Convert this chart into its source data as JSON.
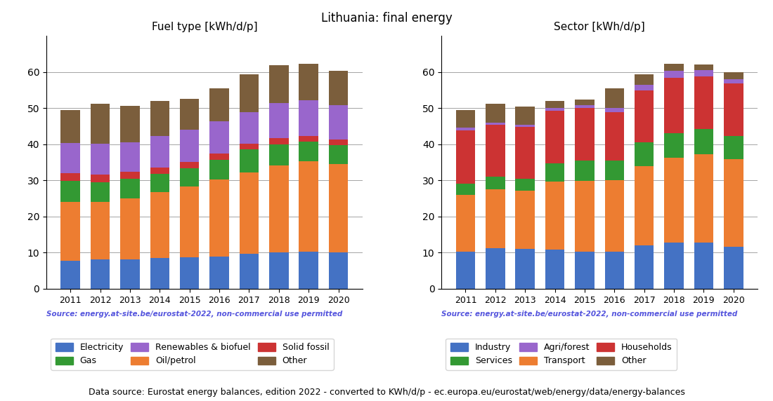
{
  "title": "Lithuania: final energy",
  "years": [
    2011,
    2012,
    2013,
    2014,
    2015,
    2016,
    2017,
    2018,
    2019,
    2020
  ],
  "fuel": {
    "title": "Fuel type [kWh/d/p]",
    "source": "Source: energy.at-site.be/eurostat-2022, non-commercial use permitted",
    "series_order": [
      "Electricity",
      "Oil/petrol",
      "Gas",
      "Solid fossil",
      "Renewables & biofuel",
      "Other"
    ],
    "series": {
      "Electricity": [
        7.8,
        8.1,
        8.2,
        8.5,
        8.7,
        9.0,
        9.7,
        10.1,
        10.3,
        10.0
      ],
      "Oil/petrol": [
        16.3,
        15.9,
        16.8,
        18.3,
        19.6,
        21.2,
        22.5,
        24.0,
        25.0,
        24.5
      ],
      "Gas": [
        5.7,
        5.5,
        5.4,
        5.0,
        5.0,
        5.5,
        6.5,
        5.8,
        5.5,
        5.3
      ],
      "Solid fossil": [
        2.2,
        2.2,
        2.0,
        1.8,
        1.9,
        1.7,
        1.5,
        1.8,
        1.5,
        1.5
      ],
      "Renewables & biofuel": [
        8.3,
        8.5,
        8.2,
        8.7,
        8.8,
        9.0,
        8.8,
        9.8,
        10.0,
        9.5
      ],
      "Other": [
        9.2,
        11.0,
        10.0,
        9.8,
        8.6,
        9.1,
        10.5,
        10.5,
        10.0,
        9.5
      ]
    },
    "colors": {
      "Electricity": "#4472c4",
      "Oil/petrol": "#ed7d31",
      "Gas": "#339933",
      "Solid fossil": "#cc3333",
      "Renewables & biofuel": "#9966cc",
      "Other": "#7b5e3c"
    },
    "legend_order": [
      "Electricity",
      "Gas",
      "Renewables & biofuel",
      "Oil/petrol",
      "Solid fossil",
      "Other"
    ]
  },
  "sector": {
    "title": "Sector [kWh/d/p]",
    "source": "Source: energy.at-site.be/eurostat-2022, non-commercial use permitted",
    "series_order": [
      "Industry",
      "Transport",
      "Services",
      "Households",
      "Agri/forest",
      "Other"
    ],
    "series": {
      "Industry": [
        10.3,
        11.2,
        11.0,
        10.8,
        10.3,
        10.2,
        12.0,
        12.7,
        12.8,
        11.7
      ],
      "Transport": [
        15.7,
        16.3,
        16.2,
        18.8,
        19.5,
        19.8,
        22.0,
        23.5,
        24.5,
        24.2
      ],
      "Services": [
        3.1,
        3.5,
        3.2,
        5.2,
        5.7,
        5.5,
        6.5,
        6.8,
        7.0,
        6.5
      ],
      "Households": [
        14.8,
        14.5,
        14.5,
        14.5,
        14.5,
        13.5,
        14.5,
        15.5,
        14.5,
        14.5
      ],
      "Agri/forest": [
        0.8,
        0.6,
        0.5,
        0.8,
        0.8,
        1.0,
        1.5,
        1.8,
        1.8,
        1.2
      ],
      "Other": [
        4.8,
        5.1,
        5.1,
        2.0,
        1.6,
        5.5,
        3.0,
        2.0,
        1.5,
        1.8
      ]
    },
    "colors": {
      "Industry": "#4472c4",
      "Transport": "#ed7d31",
      "Services": "#339933",
      "Households": "#cc3333",
      "Agri/forest": "#9966cc",
      "Other": "#7b5e3c"
    },
    "legend_order": [
      "Industry",
      "Services",
      "Agri/forest",
      "Transport",
      "Households",
      "Other"
    ]
  },
  "footer": "Data source: Eurostat energy balances, edition 2022 - converted to KWh/d/p - ec.europa.eu/eurostat/web/energy/data/energy-balances",
  "source_color": "#5555dd",
  "footer_fontsize": 9,
  "title_fontsize": 12,
  "subplot_title_fontsize": 11
}
